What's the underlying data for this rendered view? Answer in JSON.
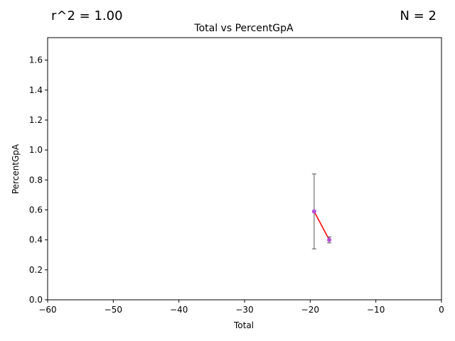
{
  "stats": {
    "r2": "r^2 = 1.00",
    "n": "N = 2"
  },
  "chart_data": {
    "type": "scatter",
    "title": "Total vs PercentGpA",
    "xlabel": "Total",
    "ylabel": "PercentGpA",
    "xlim": [
      -60,
      0
    ],
    "ylim": [
      0,
      1.75
    ],
    "xticks": [
      -60,
      -50,
      -40,
      -30,
      -20,
      -10,
      0
    ],
    "xtick_labels": [
      "−60",
      "−50",
      "−40",
      "−30",
      "−20",
      "−10",
      "0"
    ],
    "yticks": [
      0.0,
      0.2,
      0.4,
      0.6,
      0.8,
      1.0,
      1.2,
      1.4,
      1.6
    ],
    "ytick_labels": [
      "0.0",
      "0.2",
      "0.4",
      "0.6",
      "0.8",
      "1.0",
      "1.2",
      "1.4",
      "1.6"
    ],
    "grid": false,
    "points": [
      {
        "x": -19.4,
        "y": 0.59,
        "err_low": 0.34,
        "err_high": 0.84
      },
      {
        "x": -17.1,
        "y": 0.4,
        "err_low": 0.38,
        "err_high": 0.42
      }
    ],
    "fit_line": {
      "x": [
        -19.4,
        -17.1
      ],
      "y": [
        0.59,
        0.4
      ]
    },
    "colors": {
      "point": "#b44fd6",
      "fit": "#ff0000",
      "errorbar": "#555555",
      "axes": "#000000"
    }
  }
}
